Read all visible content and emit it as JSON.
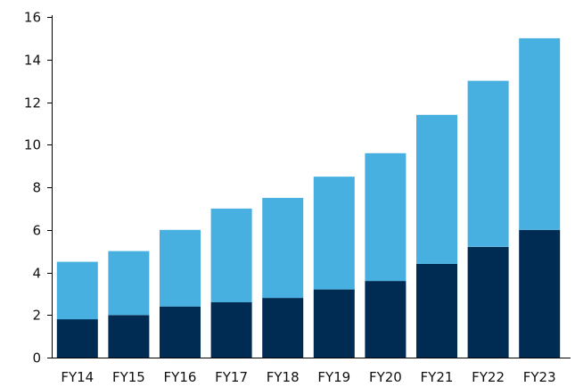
{
  "chart_data": {
    "type": "bar",
    "stacked": true,
    "categories": [
      "FY14",
      "FY15",
      "FY16",
      "FY17",
      "FY18",
      "FY19",
      "FY20",
      "FY21",
      "FY22",
      "FY23"
    ],
    "series": [
      {
        "values": [
          1.8,
          2.0,
          2.4,
          2.6,
          2.8,
          3.2,
          3.6,
          4.4,
          5.2,
          6.0
        ],
        "color": "#002b53"
      },
      {
        "values": [
          2.7,
          3.0,
          3.6,
          4.4,
          4.7,
          5.3,
          6.0,
          7.0,
          7.8,
          9.0
        ],
        "color": "#48b0e1"
      }
    ],
    "y_ticks": [
      "0",
      "2",
      "4",
      "6",
      "8",
      "10",
      "12",
      "14",
      "16"
    ],
    "ylim": [
      0,
      16
    ],
    "grid": false,
    "legend": "none",
    "title": "",
    "xlabel": "",
    "ylabel": ""
  }
}
